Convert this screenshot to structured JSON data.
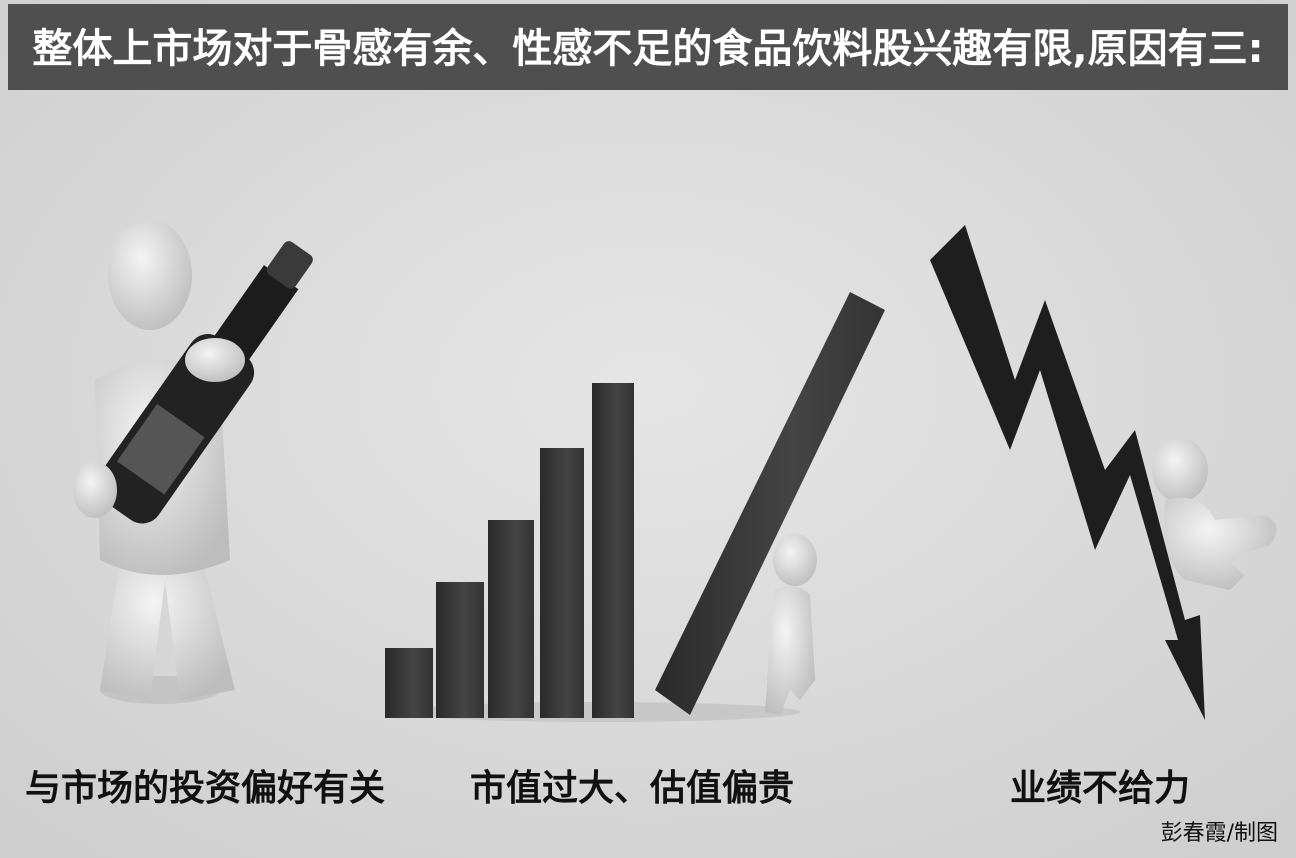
{
  "header": {
    "title": "整体上市场对于骨感有余、性感不足的食品饮料股兴趣有限,原因有三:"
  },
  "panels": [
    {
      "caption": "与市场的投资偏好有关"
    },
    {
      "caption": "市值过大、估值偏贵"
    },
    {
      "caption": "业绩不给力"
    }
  ],
  "footer": {
    "credit": "彭春霞/制图"
  }
}
